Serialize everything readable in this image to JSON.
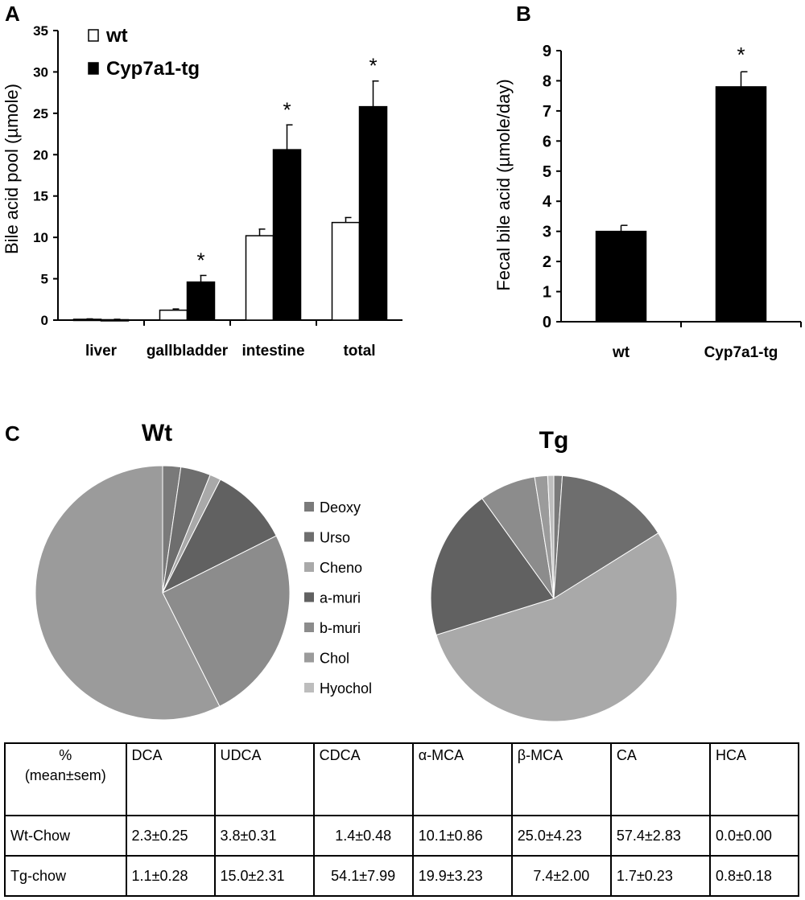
{
  "panel_labels": [
    "A",
    "B",
    "C"
  ],
  "chart_data": [
    {
      "id": "A",
      "type": "bar",
      "ylabel": "Bile acid pool (µmole)",
      "ylim": [
        0,
        35
      ],
      "yticks": [
        "0",
        "5",
        "10",
        "15",
        "20",
        "25",
        "30",
        "35"
      ],
      "categories": [
        "liver",
        "gallbladder",
        "intestine",
        "total"
      ],
      "series": [
        {
          "name": "wt",
          "color": "#ffffff",
          "values": [
            0.1,
            1.2,
            10.2,
            11.8
          ],
          "errors": [
            0.05,
            0.15,
            0.8,
            0.6
          ]
        },
        {
          "name": "Cyp7a1-tg",
          "color": "#000000",
          "values": [
            0.05,
            4.6,
            20.6,
            25.8
          ],
          "errors": [
            0.05,
            0.8,
            3.0,
            3.1
          ]
        }
      ],
      "significance": [
        "",
        "*",
        "*",
        "*"
      ],
      "legend_position": "top-left"
    },
    {
      "id": "B",
      "type": "bar",
      "ylabel": "Fecal bile acid (µmole/day)",
      "ylim": [
        0,
        9
      ],
      "yticks": [
        "0",
        "1",
        "2",
        "3",
        "4",
        "5",
        "6",
        "7",
        "8",
        "9"
      ],
      "categories": [
        "wt",
        "Cyp7a1-tg"
      ],
      "values": [
        3.0,
        7.8
      ],
      "errors": [
        0.2,
        0.5
      ],
      "color": "#000000",
      "significance": [
        "",
        "*"
      ]
    },
    {
      "id": "C-Wt",
      "type": "pie",
      "title": "Wt",
      "labels": [
        "Deoxy",
        "Urso",
        "Cheno",
        "a-muri",
        "b-muri",
        "Chol",
        "Hyochol"
      ],
      "values": [
        2.3,
        3.8,
        1.4,
        10.1,
        25.0,
        57.4,
        0.0
      ],
      "colors": [
        "#7a7a7a",
        "#6e6e6e",
        "#a9a9a9",
        "#616161",
        "#8c8c8c",
        "#9b9b9b",
        "#bdbdbd"
      ]
    },
    {
      "id": "C-Tg",
      "type": "pie",
      "title": "Tg",
      "labels": [
        "Deoxy",
        "Urso",
        "Cheno",
        "a-muri",
        "b-muri",
        "Chol",
        "Hyochol"
      ],
      "values": [
        1.1,
        15.0,
        54.1,
        19.9,
        7.4,
        1.7,
        0.8
      ],
      "colors": [
        "#7a7a7a",
        "#6e6e6e",
        "#a9a9a9",
        "#616161",
        "#8c8c8c",
        "#9b9b9b",
        "#bdbdbd"
      ]
    }
  ],
  "pie_legend": {
    "labels": [
      "Deoxy",
      "Urso",
      "Cheno",
      "a-muri",
      "b-muri",
      "Chol",
      "Hyochol"
    ],
    "colors": [
      "#7a7a7a",
      "#6e6e6e",
      "#a9a9a9",
      "#616161",
      "#8c8c8c",
      "#9b9b9b",
      "#bdbdbd"
    ]
  },
  "table": {
    "header_first_line1": "%",
    "header_first_line2": "(mean±sem)",
    "columns": [
      "DCA",
      "UDCA",
      "CDCA",
      "α-MCA",
      "β-MCA",
      "CA",
      "HCA"
    ],
    "rows": [
      {
        "label": "Wt-Chow",
        "cells": [
          "2.3±0.25",
          "3.8±0.31",
          "1.4±0.48",
          "10.1±0.86",
          "25.0±4.23",
          "57.4±2.83",
          "0.0±0.00"
        ]
      },
      {
        "label": "Tg-chow",
        "cells": [
          "1.1±0.28",
          "15.0±2.31",
          "54.1±7.99",
          "19.9±3.23",
          "7.4±2.00",
          "1.7±0.23",
          "0.8±0.18"
        ]
      }
    ]
  }
}
